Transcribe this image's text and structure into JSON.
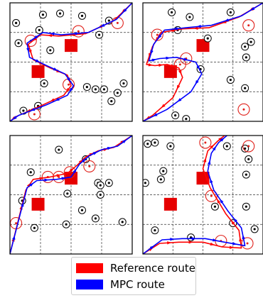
{
  "colors": {
    "reference": "#ff0000",
    "mpc": "#0000ff",
    "obstacle": "#000000",
    "circle": "#e0201a",
    "box": "#e60000",
    "grid": "#333333"
  },
  "legend": {
    "items": [
      {
        "label": "Reference route",
        "color": "#ff0000"
      },
      {
        "label": "MPC route",
        "color": "#0000ff"
      }
    ]
  },
  "panels": [
    {
      "id": "top-left",
      "boxes": [
        [
          0.5,
          0.36
        ],
        [
          0.23,
          0.58
        ]
      ],
      "obstacles": [
        [
          0.05,
          0.17
        ],
        [
          0.27,
          0.1
        ],
        [
          0.41,
          0.09
        ],
        [
          0.59,
          0.11
        ],
        [
          0.81,
          0.15
        ],
        [
          0.24,
          0.23
        ],
        [
          0.73,
          0.27
        ],
        [
          0.07,
          0.34
        ],
        [
          0.33,
          0.4
        ],
        [
          0.28,
          0.68
        ],
        [
          0.63,
          0.71
        ],
        [
          0.7,
          0.73
        ],
        [
          0.77,
          0.73
        ],
        [
          0.93,
          0.68
        ],
        [
          0.88,
          0.76
        ],
        [
          0.83,
          0.83
        ],
        [
          0.11,
          0.91
        ],
        [
          0.23,
          0.87
        ]
      ],
      "circles": [
        [
          0.56,
          0.24
        ],
        [
          0.88,
          0.17
        ],
        [
          0.17,
          0.32
        ],
        [
          0.48,
          0.69
        ],
        [
          0.2,
          0.94
        ]
      ],
      "ref": [
        [
          1.0,
          0.0
        ],
        [
          0.85,
          0.15
        ],
        [
          0.62,
          0.26
        ],
        [
          0.4,
          0.28
        ],
        [
          0.25,
          0.27
        ],
        [
          0.15,
          0.35
        ],
        [
          0.19,
          0.48
        ],
        [
          0.33,
          0.55
        ],
        [
          0.47,
          0.61
        ],
        [
          0.5,
          0.7
        ],
        [
          0.44,
          0.78
        ],
        [
          0.25,
          0.87
        ],
        [
          0.05,
          0.96
        ],
        [
          0.0,
          1.0
        ]
      ],
      "mpc": [
        [
          1.0,
          0.0
        ],
        [
          0.87,
          0.14
        ],
        [
          0.64,
          0.25
        ],
        [
          0.42,
          0.27
        ],
        [
          0.27,
          0.25
        ],
        [
          0.14,
          0.34
        ],
        [
          0.16,
          0.46
        ],
        [
          0.3,
          0.53
        ],
        [
          0.45,
          0.6
        ],
        [
          0.52,
          0.7
        ],
        [
          0.47,
          0.78
        ],
        [
          0.3,
          0.86
        ],
        [
          0.07,
          0.95
        ],
        [
          0.0,
          1.0
        ]
      ]
    },
    {
      "id": "top-right",
      "boxes": [
        [
          0.5,
          0.36
        ],
        [
          0.23,
          0.58
        ]
      ],
      "obstacles": [
        [
          0.24,
          0.08
        ],
        [
          0.39,
          0.12
        ],
        [
          0.73,
          0.08
        ],
        [
          0.29,
          0.23
        ],
        [
          0.54,
          0.3
        ],
        [
          0.85,
          0.37
        ],
        [
          0.9,
          0.33
        ],
        [
          0.86,
          0.46
        ],
        [
          0.48,
          0.56
        ],
        [
          0.73,
          0.65
        ],
        [
          0.85,
          0.72
        ],
        [
          0.27,
          0.95
        ],
        [
          0.36,
          0.98
        ]
      ],
      "circles": [
        [
          0.88,
          0.19
        ],
        [
          0.12,
          0.27
        ],
        [
          0.31,
          0.52
        ],
        [
          0.36,
          0.47
        ],
        [
          0.84,
          0.9
        ]
      ],
      "ref": [
        [
          1.0,
          0.0
        ],
        [
          0.8,
          0.12
        ],
        [
          0.55,
          0.21
        ],
        [
          0.33,
          0.22
        ],
        [
          0.15,
          0.25
        ],
        [
          0.08,
          0.37
        ],
        [
          0.03,
          0.52
        ],
        [
          0.1,
          0.53
        ],
        [
          0.2,
          0.52
        ],
        [
          0.3,
          0.55
        ],
        [
          0.33,
          0.63
        ],
        [
          0.25,
          0.8
        ],
        [
          0.08,
          0.95
        ],
        [
          0.0,
          1.0
        ]
      ],
      "mpc": [
        [
          1.0,
          0.0
        ],
        [
          0.82,
          0.11
        ],
        [
          0.57,
          0.19
        ],
        [
          0.36,
          0.21
        ],
        [
          0.18,
          0.23
        ],
        [
          0.09,
          0.35
        ],
        [
          0.05,
          0.49
        ],
        [
          0.14,
          0.47
        ],
        [
          0.28,
          0.46
        ],
        [
          0.44,
          0.5
        ],
        [
          0.49,
          0.6
        ],
        [
          0.4,
          0.75
        ],
        [
          0.2,
          0.9
        ],
        [
          0.0,
          1.0
        ]
      ]
    },
    {
      "id": "bottom-left",
      "boxes": [
        [
          0.5,
          0.36
        ],
        [
          0.23,
          0.58
        ]
      ],
      "obstacles": [
        [
          0.4,
          0.12
        ],
        [
          0.62,
          0.2
        ],
        [
          0.17,
          0.31
        ],
        [
          0.72,
          0.4
        ],
        [
          0.74,
          0.42
        ],
        [
          0.81,
          0.4
        ],
        [
          0.47,
          0.49
        ],
        [
          0.1,
          0.55
        ],
        [
          0.74,
          0.5
        ],
        [
          0.59,
          0.63
        ],
        [
          0.7,
          0.7
        ],
        [
          0.92,
          0.73
        ],
        [
          0.46,
          0.75
        ],
        [
          0.2,
          0.78
        ]
      ],
      "circles": [
        [
          0.31,
          0.35
        ],
        [
          0.4,
          0.35
        ],
        [
          0.49,
          0.31
        ],
        [
          0.65,
          0.26
        ],
        [
          0.05,
          0.74
        ]
      ],
      "ref": [
        [
          0.0,
          1.0
        ],
        [
          0.06,
          0.75
        ],
        [
          0.13,
          0.46
        ],
        [
          0.19,
          0.37
        ],
        [
          0.33,
          0.35
        ],
        [
          0.47,
          0.32
        ],
        [
          0.55,
          0.25
        ],
        [
          0.62,
          0.18
        ],
        [
          0.72,
          0.13
        ],
        [
          0.85,
          0.1
        ],
        [
          1.0,
          0.0
        ]
      ],
      "mpc": [
        [
          0.0,
          1.0
        ],
        [
          0.07,
          0.72
        ],
        [
          0.14,
          0.44
        ],
        [
          0.22,
          0.38
        ],
        [
          0.38,
          0.37
        ],
        [
          0.5,
          0.35
        ],
        [
          0.57,
          0.24
        ],
        [
          0.65,
          0.17
        ],
        [
          0.75,
          0.12
        ],
        [
          0.88,
          0.09
        ],
        [
          1.0,
          0.0
        ]
      ]
    },
    {
      "id": "bottom-right",
      "boxes": [
        [
          0.5,
          0.36
        ],
        [
          0.23,
          0.58
        ]
      ],
      "obstacles": [
        [
          0.04,
          0.07
        ],
        [
          0.1,
          0.06
        ],
        [
          0.23,
          0.09
        ],
        [
          0.7,
          0.09
        ],
        [
          0.85,
          0.11
        ],
        [
          0.17,
          0.3
        ],
        [
          0.15,
          0.37
        ],
        [
          0.02,
          0.4
        ],
        [
          0.88,
          0.2
        ],
        [
          0.86,
          0.33
        ],
        [
          0.6,
          0.6
        ],
        [
          0.86,
          0.6
        ],
        [
          0.75,
          0.74
        ],
        [
          0.93,
          0.79
        ],
        [
          0.1,
          0.8
        ],
        [
          0.4,
          0.86
        ]
      ],
      "circles": [
        [
          0.52,
          0.06
        ],
        [
          0.88,
          0.09
        ],
        [
          0.57,
          0.51
        ],
        [
          0.65,
          0.89
        ],
        [
          0.87,
          0.91
        ]
      ],
      "ref": [
        [
          0.0,
          1.0
        ],
        [
          0.14,
          0.91
        ],
        [
          0.3,
          0.9
        ],
        [
          0.5,
          0.9
        ],
        [
          0.66,
          0.94
        ],
        [
          0.82,
          0.95
        ],
        [
          0.8,
          0.8
        ],
        [
          0.69,
          0.66
        ],
        [
          0.56,
          0.44
        ],
        [
          0.5,
          0.28
        ],
        [
          0.54,
          0.13
        ],
        [
          0.62,
          0.05
        ],
        [
          0.68,
          0.0
        ]
      ],
      "mpc": [
        [
          0.0,
          1.0
        ],
        [
          0.16,
          0.88
        ],
        [
          0.33,
          0.87
        ],
        [
          0.52,
          0.87
        ],
        [
          0.68,
          0.9
        ],
        [
          0.85,
          0.93
        ],
        [
          0.82,
          0.78
        ],
        [
          0.71,
          0.64
        ],
        [
          0.59,
          0.46
        ],
        [
          0.54,
          0.3
        ],
        [
          0.57,
          0.15
        ],
        [
          0.63,
          0.06
        ],
        [
          0.7,
          0.0
        ]
      ]
    }
  ]
}
